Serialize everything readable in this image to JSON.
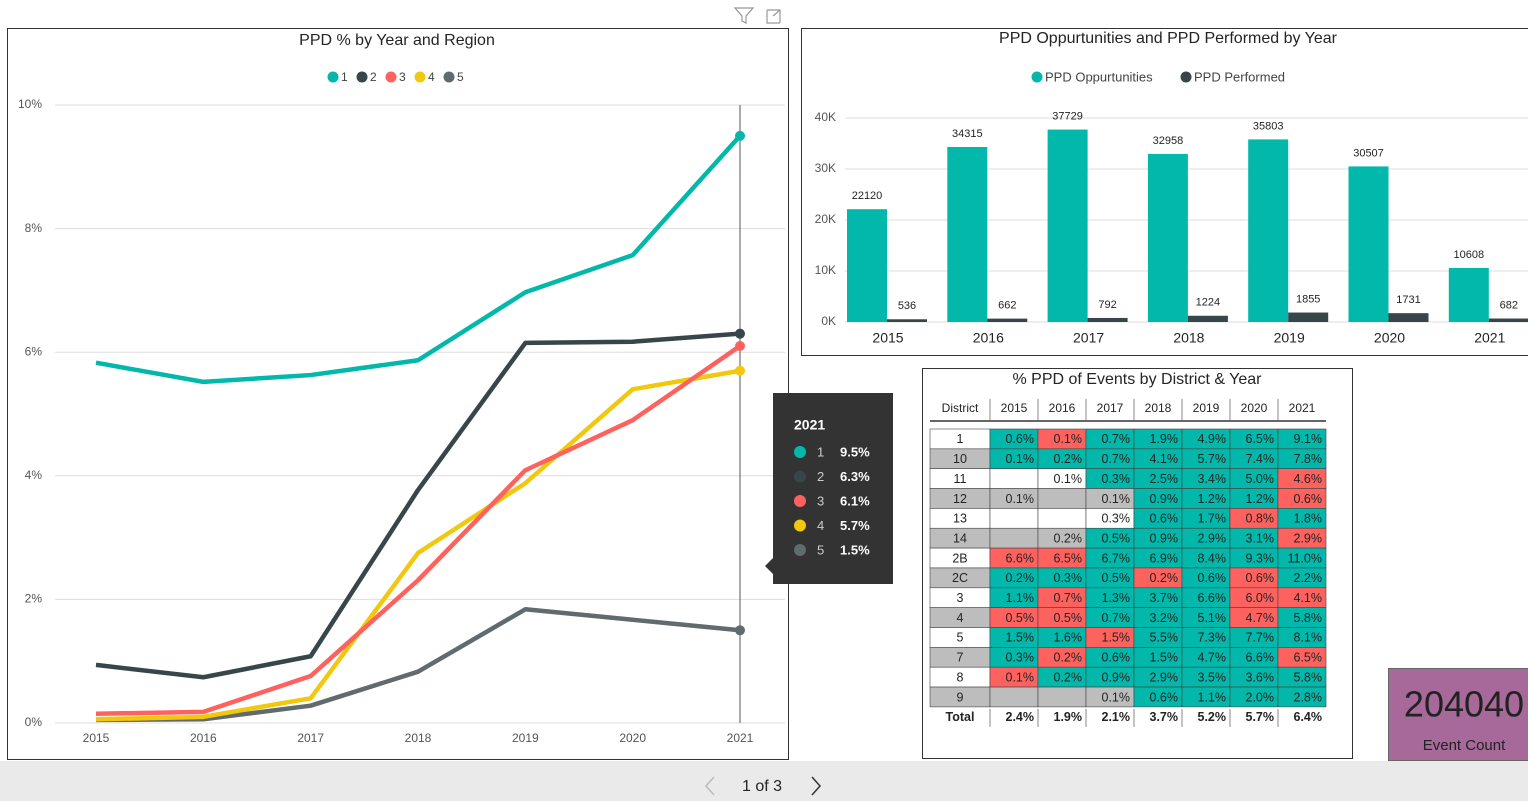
{
  "chart_data": [
    {
      "type": "line",
      "title": "PPD % by Year and Region",
      "categories": [
        "2015",
        "2016",
        "2017",
        "2018",
        "2019",
        "2020",
        "2021"
      ],
      "series": [
        {
          "name": "1",
          "color": "#01B8AA",
          "values": [
            5.83,
            5.52,
            5.63,
            5.87,
            6.97,
            7.57,
            9.5
          ]
        },
        {
          "name": "2",
          "color": "#374649",
          "values": [
            0.94,
            0.74,
            1.08,
            3.77,
            6.15,
            6.17,
            6.3
          ]
        },
        {
          "name": "3",
          "color": "#FD625E",
          "values": [
            0.15,
            0.18,
            0.76,
            2.31,
            4.09,
            4.9,
            6.1
          ]
        },
        {
          "name": "4",
          "color": "#F2C80F",
          "values": [
            0.06,
            0.1,
            0.4,
            2.75,
            3.88,
            5.4,
            5.7
          ]
        },
        {
          "name": "5",
          "color": "#5F6B6D",
          "values": [
            0.05,
            0.06,
            0.28,
            0.83,
            1.84,
            1.67,
            1.5
          ]
        }
      ],
      "ylim": [
        0,
        10
      ],
      "yticks": [
        {
          "value": 0,
          "label": "0%"
        },
        {
          "value": 2,
          "label": "2%"
        },
        {
          "value": 4,
          "label": "4%"
        },
        {
          "value": 6,
          "label": "6%"
        },
        {
          "value": 8,
          "label": "8%"
        },
        {
          "value": 10,
          "label": "10%"
        }
      ],
      "grid": true,
      "legend": "top"
    },
    {
      "type": "bar",
      "title": "PPD Oppurtunities and PPD Performed by Year",
      "categories": [
        "2015",
        "2016",
        "2017",
        "2018",
        "2019",
        "2020",
        "2021"
      ],
      "series": [
        {
          "name": "PPD Oppurtunities",
          "color": "#01B8AA",
          "values": [
            22120,
            34315,
            37729,
            32958,
            35803,
            30507,
            10608
          ]
        },
        {
          "name": "PPD Performed",
          "color": "#374649",
          "values": [
            536,
            662,
            792,
            1224,
            1855,
            1731,
            682
          ]
        }
      ],
      "ylim": [
        0,
        40000
      ],
      "yticks": [
        {
          "value": 0,
          "label": "0K"
        },
        {
          "value": 10000,
          "label": "10K"
        },
        {
          "value": 20000,
          "label": "20K"
        },
        {
          "value": 30000,
          "label": "30K"
        },
        {
          "value": 40000,
          "label": "40K"
        }
      ],
      "grid": true,
      "legend": "top"
    }
  ],
  "tooltip": {
    "title": "2021",
    "labels": [
      "9.5%",
      "6.3%",
      "6.1%",
      "5.7%",
      "1.5%"
    ]
  },
  "table": {
    "title": "% PPD of Events by District & Year",
    "header": [
      "District",
      "2015",
      "2016",
      "2017",
      "2018",
      "2019",
      "2020",
      "2021"
    ],
    "rows": [
      {
        "cells": [
          "1",
          "0.6%",
          "0.1%",
          "0.7%",
          "1.9%",
          "4.9%",
          "6.5%",
          "9.1%"
        ],
        "fills": [
          "#FFFFFF",
          "#01B8AA",
          "#FD625E",
          "#01B8AA",
          "#01B8AA",
          "#01B8AA",
          "#01B8AA",
          "#01B8AA"
        ]
      },
      {
        "cells": [
          "10",
          "0.1%",
          "0.2%",
          "0.7%",
          "4.1%",
          "5.7%",
          "7.4%",
          "7.8%"
        ],
        "fills": [
          "#BDBDBD",
          "#01B8AA",
          "#01B8AA",
          "#01B8AA",
          "#01B8AA",
          "#01B8AA",
          "#01B8AA",
          "#01B8AA"
        ]
      },
      {
        "cells": [
          "11",
          null,
          "0.1%",
          "0.3%",
          "2.5%",
          "3.4%",
          "5.0%",
          "4.6%"
        ],
        "fills": [
          "#FFFFFF",
          "#FFFFFF",
          "#FFFFFF",
          "#01B8AA",
          "#01B8AA",
          "#01B8AA",
          "#01B8AA",
          "#FD625E"
        ]
      },
      {
        "cells": [
          "12",
          "0.1%",
          null,
          "0.1%",
          "0.9%",
          "1.2%",
          "1.2%",
          "0.6%"
        ],
        "fills": [
          "#BDBDBD",
          "#BDBDBD",
          "#BDBDBD",
          "#BDBDBD",
          "#01B8AA",
          "#01B8AA",
          "#01B8AA",
          "#FD625E"
        ]
      },
      {
        "cells": [
          "13",
          null,
          null,
          "0.3%",
          "0.6%",
          "1.7%",
          "0.8%",
          "1.8%"
        ],
        "fills": [
          "#FFFFFF",
          "#FFFFFF",
          "#FFFFFF",
          "#FFFFFF",
          "#01B8AA",
          "#01B8AA",
          "#FD625E",
          "#01B8AA"
        ]
      },
      {
        "cells": [
          "14",
          null,
          "0.2%",
          "0.5%",
          "0.9%",
          "2.9%",
          "3.1%",
          "2.9%"
        ],
        "fills": [
          "#BDBDBD",
          "#BDBDBD",
          "#BDBDBD",
          "#01B8AA",
          "#01B8AA",
          "#01B8AA",
          "#01B8AA",
          "#FD625E"
        ]
      },
      {
        "cells": [
          "2B",
          "6.6%",
          "6.5%",
          "6.7%",
          "6.9%",
          "8.4%",
          "9.3%",
          "11.0%"
        ],
        "fills": [
          "#FFFFFF",
          "#FD625E",
          "#FD625E",
          "#01B8AA",
          "#01B8AA",
          "#01B8AA",
          "#01B8AA",
          "#01B8AA"
        ]
      },
      {
        "cells": [
          "2C",
          "0.2%",
          "0.3%",
          "0.5%",
          "0.2%",
          "0.6%",
          "0.6%",
          "2.2%"
        ],
        "fills": [
          "#BDBDBD",
          "#01B8AA",
          "#01B8AA",
          "#01B8AA",
          "#FD625E",
          "#01B8AA",
          "#FD625E",
          "#01B8AA"
        ]
      },
      {
        "cells": [
          "3",
          "1.1%",
          "0.7%",
          "1.3%",
          "3.7%",
          "6.6%",
          "6.0%",
          "4.1%"
        ],
        "fills": [
          "#FFFFFF",
          "#01B8AA",
          "#FD625E",
          "#01B8AA",
          "#01B8AA",
          "#01B8AA",
          "#FD625E",
          "#FD625E"
        ]
      },
      {
        "cells": [
          "4",
          "0.5%",
          "0.5%",
          "0.7%",
          "3.2%",
          "5.1%",
          "4.7%",
          "5.8%"
        ],
        "fills": [
          "#BDBDBD",
          "#FD625E",
          "#FD625E",
          "#01B8AA",
          "#01B8AA",
          "#01B8AA",
          "#FD625E",
          "#01B8AA"
        ]
      },
      {
        "cells": [
          "5",
          "1.5%",
          "1.6%",
          "1.5%",
          "5.5%",
          "7.3%",
          "7.7%",
          "8.1%"
        ],
        "fills": [
          "#FFFFFF",
          "#01B8AA",
          "#01B8AA",
          "#FD625E",
          "#01B8AA",
          "#01B8AA",
          "#01B8AA",
          "#01B8AA"
        ]
      },
      {
        "cells": [
          "7",
          "0.3%",
          "0.2%",
          "0.6%",
          "1.5%",
          "4.7%",
          "6.6%",
          "6.5%"
        ],
        "fills": [
          "#BDBDBD",
          "#01B8AA",
          "#FD625E",
          "#01B8AA",
          "#01B8AA",
          "#01B8AA",
          "#01B8AA",
          "#FD625E"
        ]
      },
      {
        "cells": [
          "8",
          "0.1%",
          "0.2%",
          "0.9%",
          "2.9%",
          "3.5%",
          "3.6%",
          "5.8%"
        ],
        "fills": [
          "#FFFFFF",
          "#FD625E",
          "#01B8AA",
          "#01B8AA",
          "#01B8AA",
          "#01B8AA",
          "#01B8AA",
          "#01B8AA"
        ]
      },
      {
        "cells": [
          "9",
          null,
          null,
          "0.1%",
          "0.6%",
          "1.1%",
          "2.0%",
          "2.8%"
        ],
        "fills": [
          "#BDBDBD",
          "#BDBDBD",
          "#BDBDBD",
          "#BDBDBD",
          "#01B8AA",
          "#01B8AA",
          "#01B8AA",
          "#01B8AA"
        ]
      }
    ],
    "total": [
      "Total",
      "2.4%",
      "1.9%",
      "2.1%",
      "3.7%",
      "5.2%",
      "5.7%",
      "6.4%"
    ]
  },
  "card": {
    "value": 204040,
    "label": "Event Count",
    "color": "#A66999"
  },
  "pager": {
    "text": "1 of 3"
  }
}
